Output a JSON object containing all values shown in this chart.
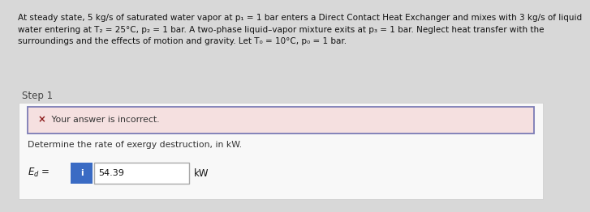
{
  "problem_text": "At steady state, 5 kg/s of saturated water vapor at p₁ = 1 bar enters a Direct Contact Heat Exchanger and mixes with 3 kg/s of liquid\nwater entering at T₂ = 25°C, p₂ = 1 bar. A two-phase liquid–vapor mixture exits at p₃ = 1 bar. Neglect heat transfer with the\nsurroundings and the effects of motion and gravity. Let T₀ = 10°C, p₀ = 1 bar.",
  "step_label": "Step 1",
  "incorrect_mark": "×",
  "incorrect_text": " Your answer is incorrect.",
  "question_text": "Determine the rate of exergy destruction, in kW.",
  "answer_value": "54.39",
  "unit_text": "kW",
  "bg_outer": "#d8d8d8",
  "bg_problem": "#ffffff",
  "bg_step": "#e8e8e8",
  "bg_inner_step": "#f0f0f0",
  "incorrect_box_fill": "#f5e0e0",
  "incorrect_box_border": "#7b7bb5",
  "x_mark_color": "#8b1a1a",
  "info_btn_color": "#3a6bc4",
  "answer_box_border": "#aaaaaa",
  "problem_text_color": "#111111",
  "step_text_color": "#444444",
  "incorrect_text_color": "#333333",
  "question_text_color": "#333333",
  "answer_text_color": "#111111",
  "font_size_problem": 7.5,
  "font_size_step": 8.5,
  "font_size_body": 7.8,
  "font_size_eq": 8.5,
  "font_size_answer": 8.0
}
